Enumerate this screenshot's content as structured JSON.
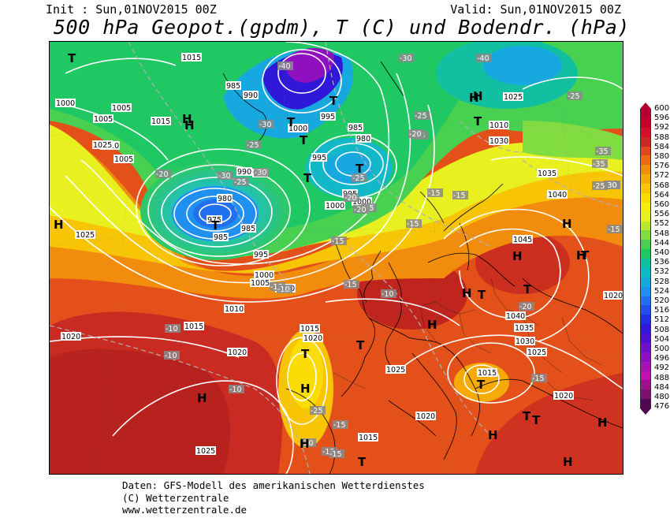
{
  "header": {
    "init": "Init : Sun,01NOV2015 00Z",
    "valid": "Valid: Sun,01NOV2015 00Z",
    "title": "500 hPa Geopot.(gpdm), T (C) und Bodendr. (hPa)"
  },
  "legend": {
    "values": [
      "600",
      "596",
      "592",
      "588",
      "584",
      "580",
      "576",
      "572",
      "568",
      "564",
      "560",
      "556",
      "552",
      "548",
      "544",
      "540",
      "536",
      "532",
      "528",
      "524",
      "520",
      "516",
      "512",
      "508",
      "504",
      "500",
      "496",
      "492",
      "488",
      "484",
      "480",
      "476"
    ],
    "colors": [
      "#b30030",
      "#c4002c",
      "#d2102a",
      "#c62a22",
      "#e04a1c",
      "#ec6a12",
      "#f28c0c",
      "#f6aa08",
      "#f8c406",
      "#fadc06",
      "#f6ec10",
      "#e8f020",
      "#b8e830",
      "#80dc40",
      "#48d050",
      "#20c864",
      "#10c0a0",
      "#10b8c8",
      "#18a8e0",
      "#2090f0",
      "#2070f0",
      "#2050e8",
      "#2030e0",
      "#3018d8",
      "#5010d0",
      "#7010c8",
      "#9010c0",
      "#a810b8",
      "#c010b0",
      "#a0108c",
      "#801070",
      "#500850"
    ]
  },
  "map": {
    "pressure_labels": [
      "1015",
      "985",
      "990",
      "1005",
      "1010",
      "1000",
      "985",
      "995",
      "1000",
      "990",
      "985",
      "980",
      "975",
      "995",
      "1010",
      "1005",
      "1000",
      "995",
      "1030",
      "1025",
      "1035",
      "1040",
      "1045",
      "1020",
      "1040",
      "1035",
      "1030",
      "1025",
      "1015",
      "1020",
      "1025",
      "1020",
      "1015",
      "1020",
      "1025",
      "1010",
      "1015",
      "1005",
      "990",
      "995",
      "1000",
      "980",
      "985",
      "1015",
      "1010",
      "1020",
      "1025",
      "1015",
      "1025",
      "1020",
      "1000",
      "1005"
    ],
    "temperature_labels": [
      "-40",
      "-35",
      "-30",
      "-30",
      "-25",
      "-25",
      "-20",
      "-40",
      "-30",
      "-30",
      "-35",
      "-25",
      "-25",
      "-20",
      "-15",
      "-15",
      "-20",
      "-25",
      "-30",
      "-35",
      "-30",
      "-25",
      "-20",
      "-15",
      "-15",
      "-10",
      "-10",
      "-10",
      "-10",
      "-15",
      "-10",
      "-10",
      "-25",
      "-20",
      "-15",
      "-15",
      "-15",
      "-15",
      "-20",
      "-25",
      "-15"
    ],
    "high_markers": [
      "H",
      "H",
      "H",
      "H",
      "H",
      "H",
      "H",
      "H",
      "H",
      "H",
      "H",
      "H",
      "H",
      "H",
      "H",
      "H"
    ],
    "low_markers": [
      "T",
      "T",
      "T",
      "T",
      "T",
      "T",
      "T",
      "T",
      "T",
      "T",
      "T",
      "T",
      "T",
      "T",
      "T",
      "T",
      "T"
    ]
  },
  "credits": {
    "line1": "Daten: GFS-Modell des amerikanischen Wetterdienstes",
    "line2": "(C) Wetterzentrale",
    "line3": "www.wetterzentrale.de"
  }
}
